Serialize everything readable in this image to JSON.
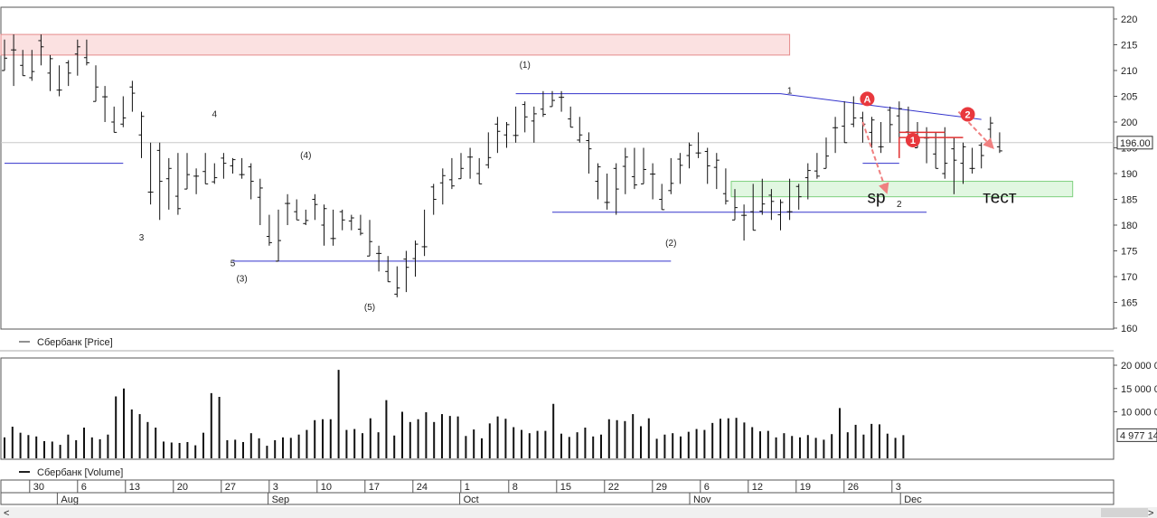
{
  "chart_data": [
    {
      "type": "ohlc-bar",
      "y_range": [
        160,
        222
      ],
      "y_ticks": [
        "220",
        "215",
        "210",
        "205",
        "200",
        "195",
        "190",
        "185",
        "180",
        "175",
        "170",
        "165",
        "160"
      ],
      "last_price_label": "196.00",
      "legend": "Сбербанк [Price]",
      "bars": [
        [
          210,
          216
        ],
        [
          207,
          217
        ],
        [
          209,
          214
        ],
        [
          208,
          214
        ],
        [
          211,
          217
        ],
        [
          206,
          213
        ],
        [
          205,
          211
        ],
        [
          207,
          212
        ],
        [
          209,
          216
        ],
        [
          211,
          216
        ],
        [
          204,
          211
        ],
        [
          200,
          207
        ],
        [
          198,
          203
        ],
        [
          199,
          205
        ],
        [
          202,
          208
        ],
        [
          193,
          202
        ],
        [
          184,
          196
        ],
        [
          181,
          196
        ],
        [
          183,
          193
        ],
        [
          182,
          194
        ],
        [
          187,
          194
        ],
        [
          186,
          191
        ],
        [
          188,
          194
        ],
        [
          188,
          192
        ],
        [
          189,
          194
        ],
        [
          190,
          193
        ],
        [
          189,
          193
        ],
        [
          185,
          192
        ],
        [
          180,
          189
        ],
        [
          176,
          182
        ],
        [
          173,
          183
        ],
        [
          180,
          186
        ],
        [
          181,
          185
        ],
        [
          180,
          183
        ],
        [
          181,
          186
        ],
        [
          176,
          184
        ],
        [
          176,
          183
        ],
        [
          179,
          183
        ],
        [
          179,
          182
        ],
        [
          178,
          182
        ],
        [
          174,
          181
        ],
        [
          171,
          176
        ],
        [
          169,
          174
        ],
        [
          166,
          172
        ],
        [
          167,
          175
        ],
        [
          170,
          177
        ],
        [
          174,
          183
        ],
        [
          182,
          188
        ],
        [
          184,
          191
        ],
        [
          187,
          193
        ],
        [
          189,
          194
        ],
        [
          189,
          195
        ],
        [
          188,
          193
        ],
        [
          191,
          198
        ],
        [
          194,
          201
        ],
        [
          195,
          200
        ],
        [
          196,
          203
        ],
        [
          198,
          204
        ],
        [
          196,
          203
        ],
        [
          201,
          206
        ],
        [
          203,
          206
        ],
        [
          202,
          206
        ],
        [
          199,
          203
        ],
        [
          196,
          201
        ],
        [
          190,
          198
        ],
        [
          185,
          192
        ],
        [
          183,
          190
        ],
        [
          182,
          192
        ],
        [
          186,
          195
        ],
        [
          187,
          195
        ],
        [
          188,
          195
        ],
        [
          185,
          192
        ],
        [
          183,
          188
        ],
        [
          186,
          193
        ],
        [
          188,
          194
        ],
        [
          191,
          196
        ],
        [
          193,
          198
        ],
        [
          188,
          195
        ],
        [
          187,
          194
        ],
        [
          184,
          191
        ],
        [
          181,
          187
        ],
        [
          177,
          184
        ],
        [
          179,
          188
        ],
        [
          182,
          189
        ],
        [
          181,
          187
        ],
        [
          179,
          185
        ],
        [
          181,
          189
        ],
        [
          183,
          188
        ],
        [
          185,
          192
        ],
        [
          189,
          194
        ],
        [
          191,
          197
        ],
        [
          194,
          201
        ],
        [
          196,
          204
        ],
        [
          199,
          205
        ],
        [
          196,
          202
        ],
        [
          195,
          201
        ],
        [
          194,
          200
        ],
        [
          196,
          203
        ],
        [
          197,
          204
        ],
        [
          196,
          203
        ],
        [
          195,
          200
        ],
        [
          192,
          199
        ],
        [
          191,
          198
        ],
        [
          189,
          199
        ],
        [
          186,
          197
        ],
        [
          188,
          196
        ],
        [
          190,
          195
        ],
        [
          191,
          196
        ],
        [
          195,
          201
        ],
        [
          194,
          198
        ]
      ],
      "wave_labels": [
        {
          "text": "(1)",
          "x": 57,
          "y": 210.5
        },
        {
          "text": "4",
          "x": 23,
          "y": 201
        },
        {
          "text": "(4)",
          "x": 33,
          "y": 193
        },
        {
          "text": "3",
          "x": 15,
          "y": 177
        },
        {
          "text": "5",
          "x": 25,
          "y": 172
        },
        {
          "text": "(3)",
          "x": 26,
          "y": 169
        },
        {
          "text": "(5)",
          "x": 40,
          "y": 163.5
        },
        {
          "text": "(2)",
          "x": 73,
          "y": 176
        },
        {
          "text": "1",
          "x": 86,
          "y": 205.5
        },
        {
          "text": "2",
          "x": 98,
          "y": 183.5
        }
      ],
      "annotations": [
        {
          "text": "sp",
          "x": 95.5,
          "y": 185.5
        },
        {
          "text": "тест",
          "x": 109,
          "y": 185.5
        }
      ],
      "circle_markers": [
        {
          "text": "A",
          "x": 94.5,
          "y": 204.5
        },
        {
          "text": "1",
          "x": 99.5,
          "y": 196.5
        },
        {
          "text": "2",
          "x": 105.5,
          "y": 201.5
        }
      ],
      "zones": [
        {
          "name": "resistance-zone",
          "x0": 0,
          "x1": 86,
          "y0": 213,
          "y1": 217,
          "color": "#f7c9c9"
        },
        {
          "name": "support-zone",
          "x0": 80,
          "x1": 117,
          "y0": 185.5,
          "y1": 188.5,
          "color": "#c9f0c9"
        }
      ],
      "trend_lines": [
        {
          "x0": 0,
          "y0": 192,
          "x1": 13,
          "y1": 192
        },
        {
          "x0": 25,
          "y0": 173,
          "x1": 73,
          "y1": 173
        },
        {
          "x0": 56,
          "y0": 205.5,
          "x1": 85,
          "y1": 205.5
        },
        {
          "x0": 60,
          "y0": 182.5,
          "x1": 101,
          "y1": 182.5
        },
        {
          "x0": 85,
          "y0": 205.5,
          "x1": 107,
          "y1": 200.5
        },
        {
          "x0": 94,
          "y0": 192,
          "x1": 98,
          "y1": 192
        }
      ],
      "red_lines": [
        {
          "x0": 98,
          "y0": 197,
          "x1": 105,
          "y1": 197
        },
        {
          "x0": 98,
          "y0": 197,
          "x1": 98,
          "y1": 193
        },
        {
          "x0": 98,
          "y0": 198,
          "x1": 103,
          "y1": 198
        }
      ]
    },
    {
      "type": "bar",
      "y_range": [
        0,
        21000
      ],
      "y_ticks": [
        "20 000 0",
        "15 000 0",
        "10 000 0"
      ],
      "last_value_label": "4 977 14",
      "legend": "Сбербанк [Volume]",
      "values": [
        4500,
        6800,
        5500,
        5000,
        4700,
        3700,
        3600,
        2900,
        5100,
        3900,
        6600,
        4500,
        4100,
        5100,
        13300,
        15000,
        10500,
        9500,
        7800,
        6600,
        3600,
        3400,
        3300,
        3500,
        2800,
        5500,
        14000,
        13200,
        3900,
        4000,
        3500,
        5400,
        4300,
        2700,
        3900,
        4500,
        4400,
        5100,
        6100,
        8200,
        8400,
        8400,
        19000,
        6100,
        6300,
        5400,
        8600,
        5600,
        12500,
        4900,
        10000,
        7800,
        8400,
        9900,
        7800,
        9500,
        9100,
        9000,
        4800,
        6200,
        4300,
        7500,
        9000,
        8500,
        6700,
        6100,
        5400,
        5900,
        5900,
        11700,
        5300,
        4600,
        5600,
        6600,
        4700,
        5100,
        8400,
        8200,
        8000,
        9500,
        6900,
        8600,
        4200,
        5100,
        5400,
        4700,
        5700,
        6300,
        6100,
        7600,
        8500,
        8600,
        8700,
        7700,
        6700,
        5800,
        5900,
        4500,
        5400,
        4800,
        4500,
        5000,
        4400,
        4000,
        5200,
        10800,
        5600,
        7200,
        5100,
        7400,
        7300,
        5300,
        4400,
        4977
      ]
    }
  ],
  "x_axis": {
    "days": [
      {
        "label": "30",
        "x": 3
      },
      {
        "label": "6",
        "x": 8
      },
      {
        "label": "13",
        "x": 13
      },
      {
        "label": "20",
        "x": 18
      },
      {
        "label": "27",
        "x": 23
      },
      {
        "label": "3",
        "x": 28
      },
      {
        "label": "10",
        "x": 33
      },
      {
        "label": "17",
        "x": 38
      },
      {
        "label": "24",
        "x": 43
      },
      {
        "label": "1",
        "x": 48
      },
      {
        "label": "8",
        "x": 53
      },
      {
        "label": "15",
        "x": 58
      },
      {
        "label": "22",
        "x": 63
      },
      {
        "label": "29",
        "x": 68
      },
      {
        "label": "6",
        "x": 73
      },
      {
        "label": "12",
        "x": 78
      },
      {
        "label": "19",
        "x": 83
      },
      {
        "label": "26",
        "x": 88
      },
      {
        "label": "3",
        "x": 93
      }
    ],
    "months": [
      {
        "label": "Aug",
        "x": 4
      },
      {
        "label": "Sep",
        "x": 26
      },
      {
        "label": "Oct",
        "x": 46
      },
      {
        "label": "Nov",
        "x": 70
      },
      {
        "label": "Dec",
        "x": 92
      }
    ]
  },
  "scrollbar": {
    "left_arrow": "<",
    "right_arrow": ">"
  }
}
